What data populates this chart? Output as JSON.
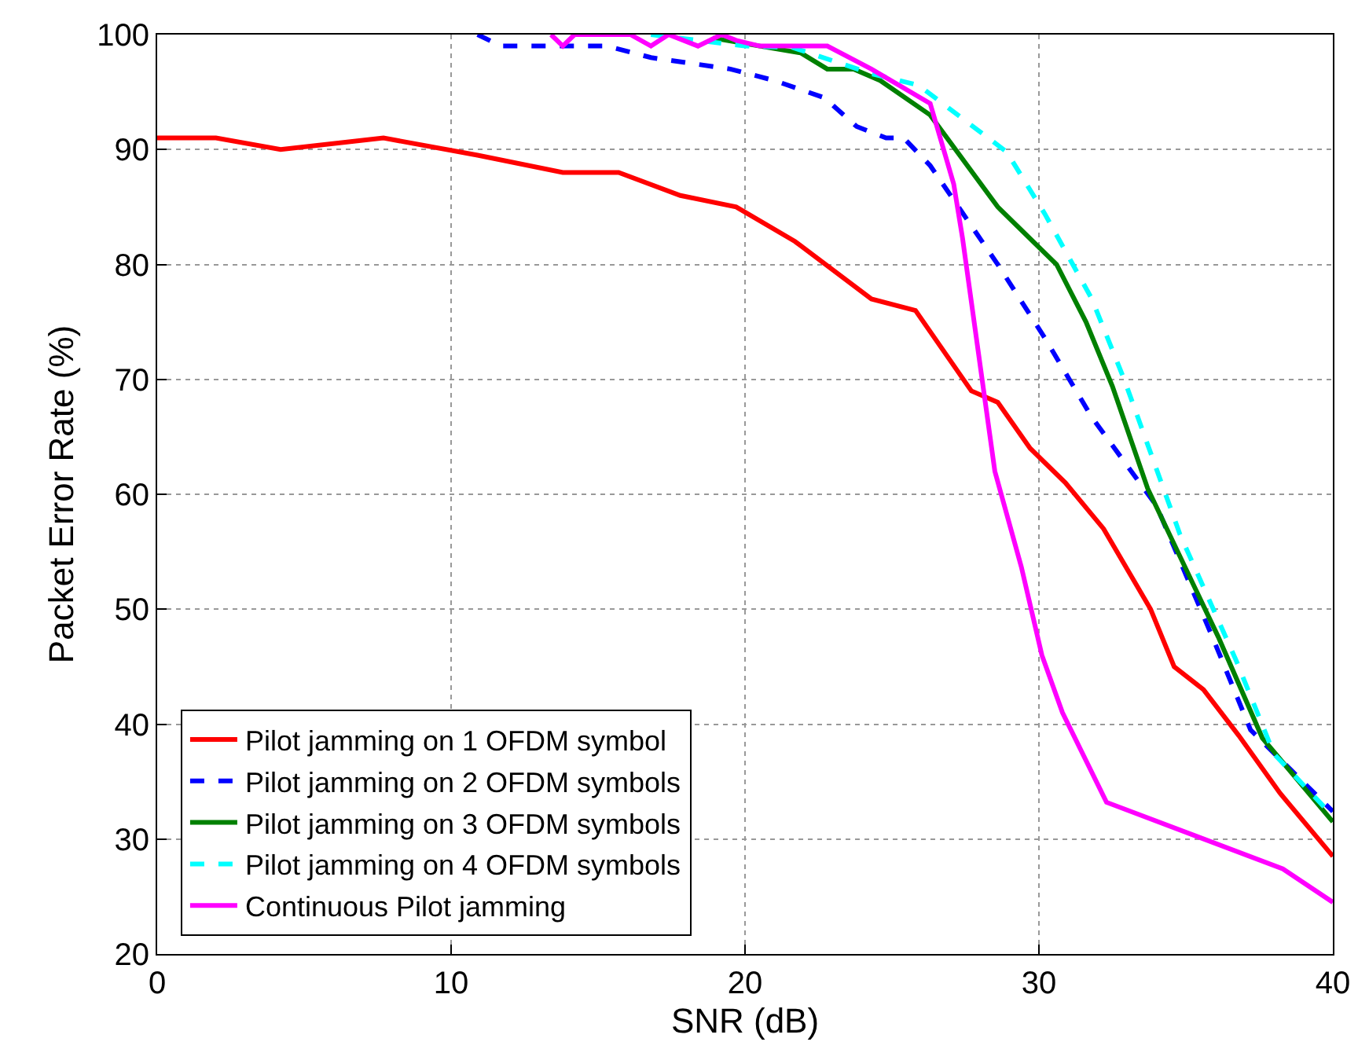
{
  "chart_data": {
    "type": "line",
    "xlabel": "SNR (dB)",
    "ylabel": "Packet Error Rate (%)",
    "xlim": [
      0,
      40
    ],
    "xticks": [
      0,
      10,
      20,
      30,
      40
    ],
    "ylim": [
      20,
      100
    ],
    "yticks": [
      20,
      30,
      40,
      50,
      60,
      70,
      80,
      90,
      100
    ],
    "grid": true,
    "legend": "bottom left",
    "marker": "none",
    "series": [
      {
        "name": "Pilot jamming on 1 OFDM symbol",
        "color": "#ff0000",
        "line_style": "solid",
        "x": [
          0,
          2,
          4.2,
          7.7,
          10.9,
          13.8,
          15.7,
          17.8,
          19.7,
          21.7,
          24.3,
          25.8,
          27.7,
          28.6,
          29.7,
          30.9,
          32.2,
          33.8,
          34.6,
          35.6,
          36.8,
          38.2,
          40
        ],
        "values": [
          91,
          91,
          90,
          91,
          89.5,
          88,
          88,
          86,
          85,
          82,
          77,
          76,
          69,
          68,
          64,
          61,
          57,
          50,
          45,
          43,
          39,
          34,
          28.5
        ]
      },
      {
        "name": "Pilot jamming on 2 OFDM symbols",
        "color": "#0000ff",
        "line_style": "dashed",
        "x": [
          10.9,
          11.7,
          15.3,
          16.8,
          19.5,
          21,
          22.7,
          23.8,
          24.8,
          25.4,
          26.3,
          28.6,
          30.2,
          31.8,
          34,
          35.9,
          37.2,
          40
        ],
        "values": [
          100,
          99,
          99,
          98,
          97,
          96,
          94.5,
          92,
          91,
          91,
          88.6,
          80,
          73.6,
          66.7,
          59,
          47.6,
          39.5,
          32.4
        ]
      },
      {
        "name": "Pilot jamming on 3 OFDM symbols",
        "color": "#008000",
        "line_style": "solid",
        "x": [
          18.9,
          20.5,
          21.9,
          22.8,
          23.7,
          24.6,
          26.3,
          28.6,
          30.6,
          31.6,
          32.5,
          33.7,
          36.1,
          37.6,
          40
        ],
        "values": [
          99.7,
          99,
          98.4,
          97,
          97,
          96,
          93,
          85,
          80,
          75,
          69.4,
          60.5,
          47.6,
          38.8,
          31.5
        ]
      },
      {
        "name": "Pilot jamming on 4 OFDM symbols",
        "color": "#00ffff",
        "line_style": "dashed",
        "x": [
          16.8,
          20,
          21.6,
          24.3,
          25.9,
          27.5,
          28.9,
          30.2,
          31.8,
          32.9,
          34.8,
          36.7,
          38,
          40
        ],
        "values": [
          100,
          99,
          98.9,
          96.6,
          95.6,
          92.5,
          89.8,
          84.4,
          77,
          70,
          56.5,
          45.6,
          37.4,
          32
        ]
      },
      {
        "name": "Continuous Pilot jamming",
        "color": "#ff00ff",
        "line_style": "solid",
        "x": [
          13.4,
          13.8,
          14.2,
          16.1,
          16.8,
          17.4,
          18.4,
          19.2,
          19.7,
          20.5,
          22.8,
          24.3,
          26.3,
          27.1,
          27.4,
          28.5,
          29.4,
          30.1,
          30.8,
          32.3,
          38.3,
          40
        ],
        "values": [
          100,
          99,
          100,
          100,
          99,
          100,
          99,
          100,
          99.5,
          99,
          99,
          97,
          94,
          87,
          82.3,
          62,
          53.7,
          46,
          41,
          33.2,
          27.4,
          24.5
        ]
      }
    ]
  }
}
